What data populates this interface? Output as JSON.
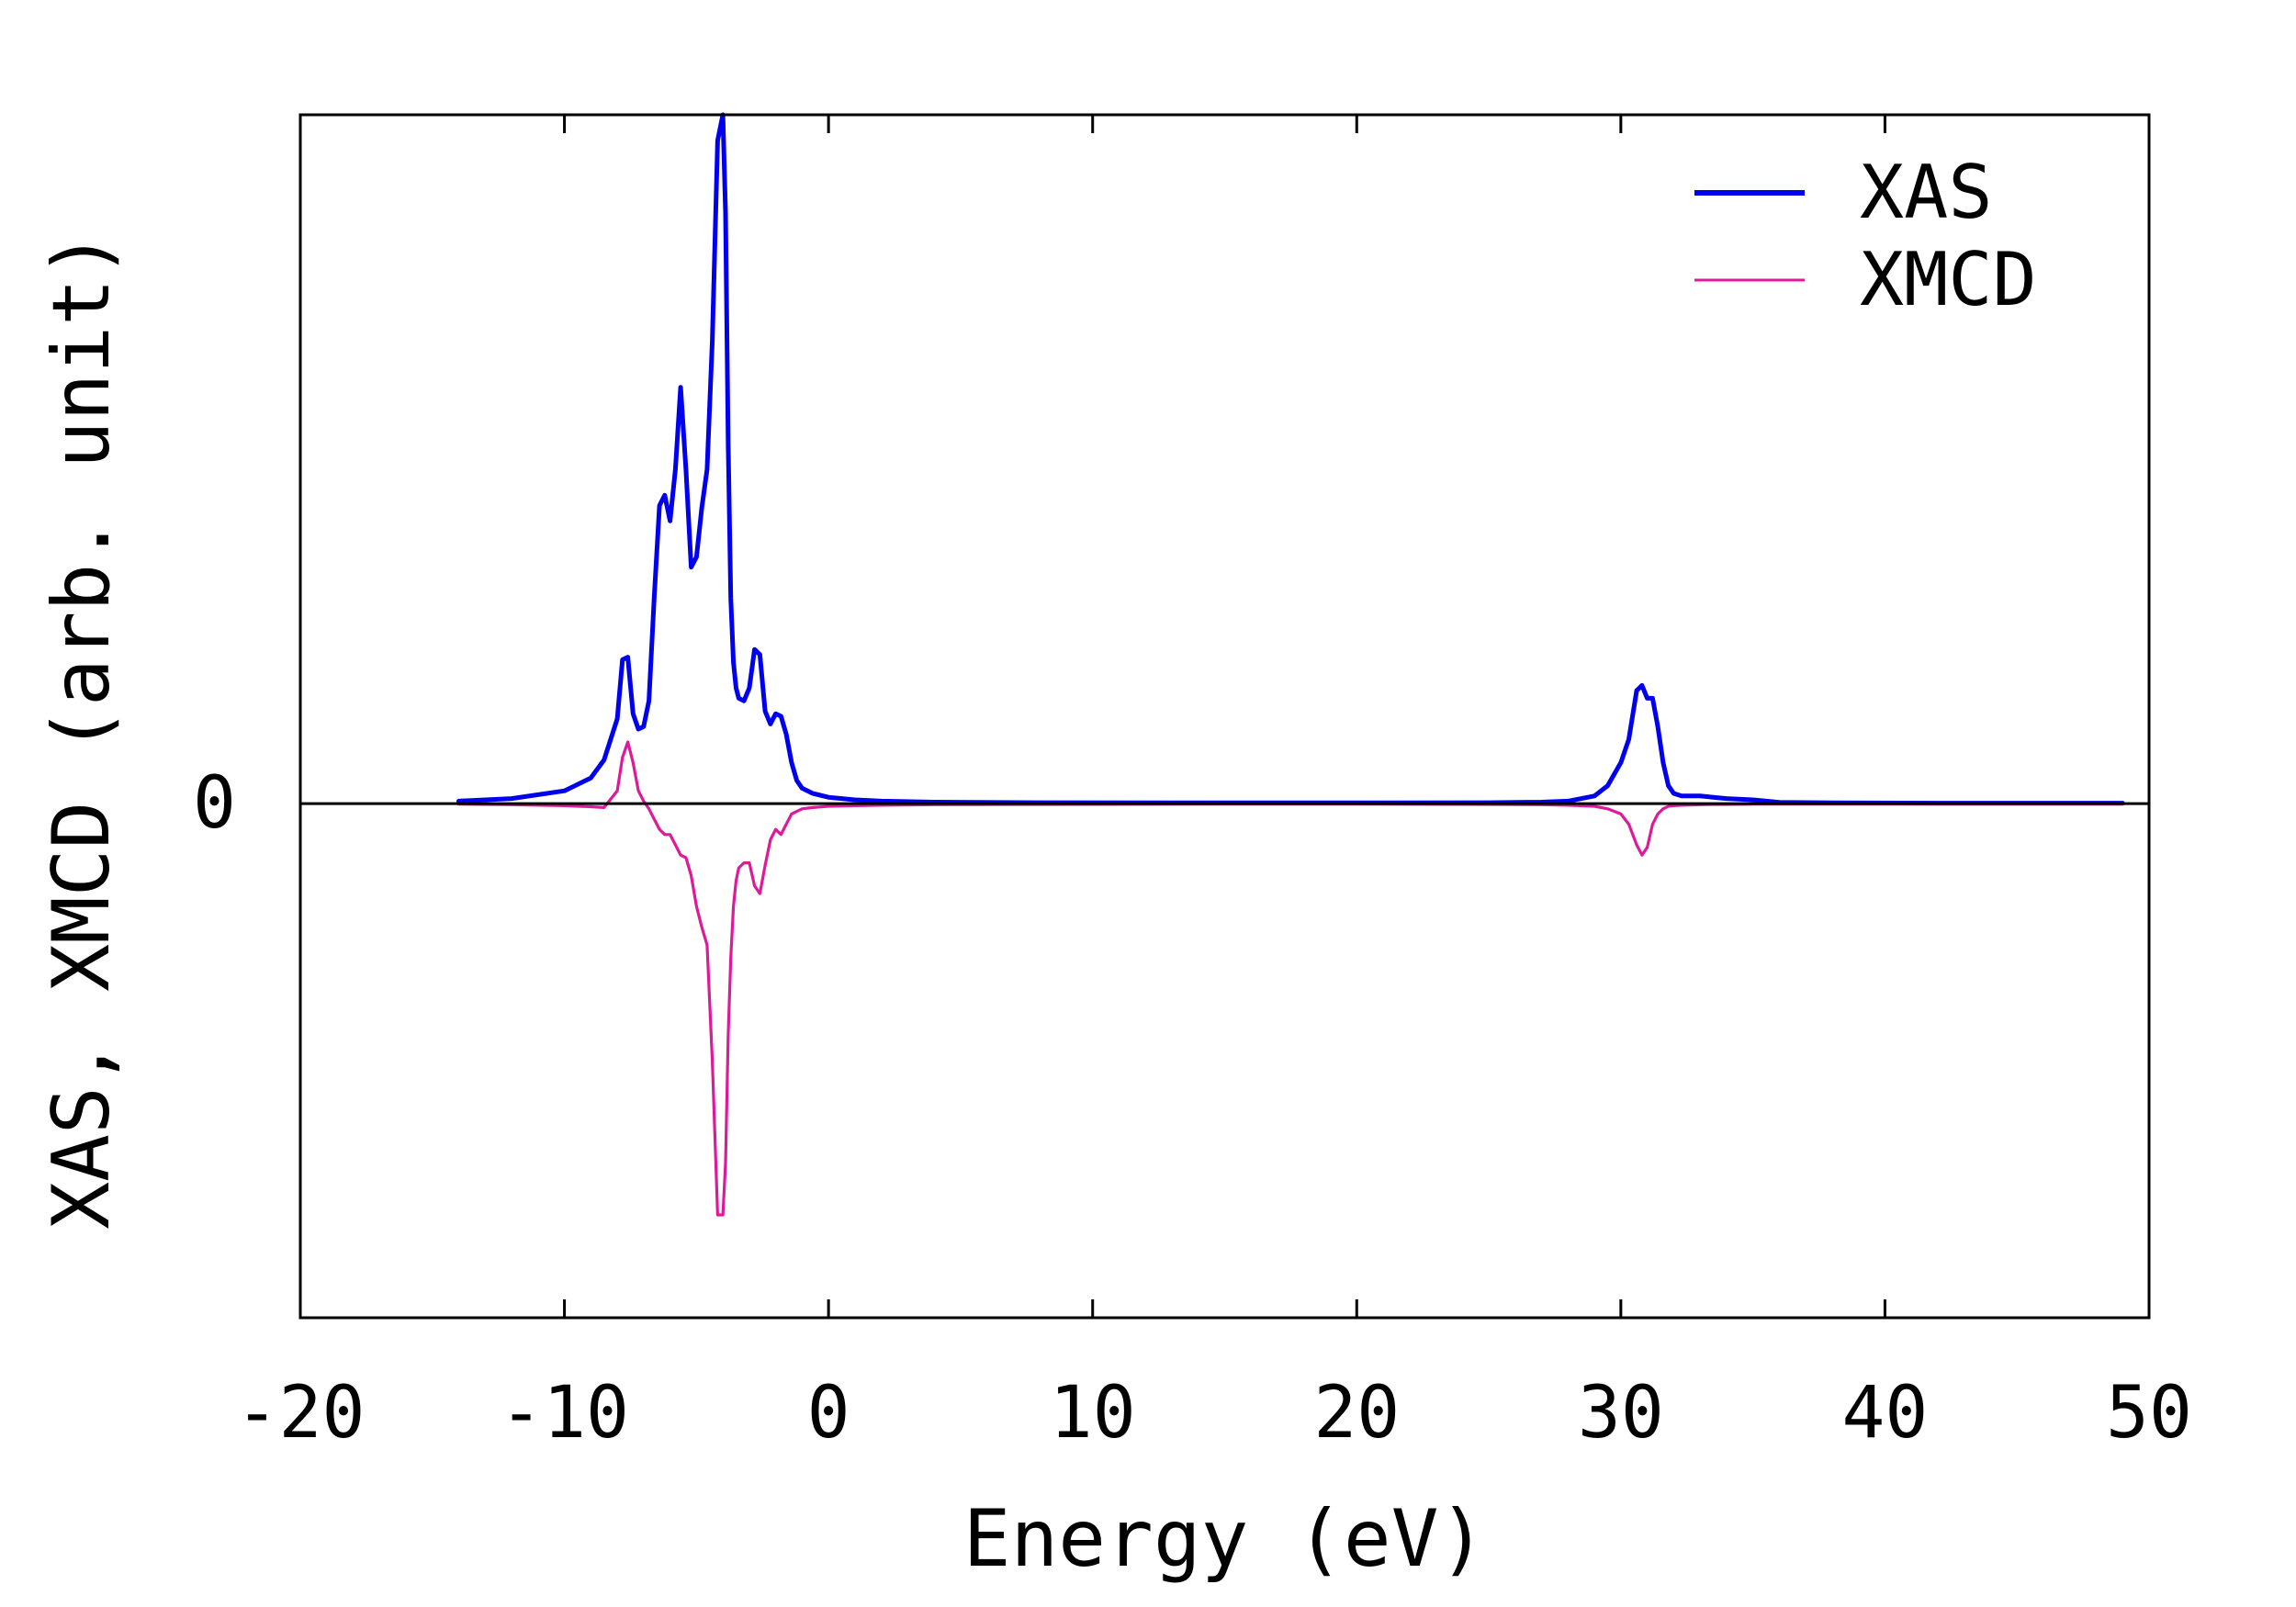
{
  "chart_data": {
    "type": "line",
    "title": "",
    "xlabel": "Energy (eV)",
    "ylabel": "XAS, XMCD (arb. unit)",
    "xlim": [
      -20,
      50
    ],
    "ylim": [
      -2.0,
      2.68
    ],
    "xticks": [
      -20,
      -10,
      0,
      10,
      20,
      30,
      40,
      50
    ],
    "xtick_labels": [
      "-20",
      "-10",
      "0",
      "10",
      "20",
      "30",
      "40",
      "50"
    ],
    "yticks": [
      0
    ],
    "ytick_labels": [
      "0"
    ],
    "zero_line": true,
    "grid": false,
    "legend": {
      "position": "top-right"
    },
    "series": [
      {
        "name": "XAS",
        "color": "#0000ee",
        "x": [
          -14.0,
          -12.0,
          -10.0,
          -9.0,
          -8.5,
          -8.0,
          -7.8,
          -7.6,
          -7.4,
          -7.2,
          -7.0,
          -6.8,
          -6.6,
          -6.4,
          -6.2,
          -6.0,
          -5.8,
          -5.6,
          -5.4,
          -5.2,
          -5.0,
          -4.8,
          -4.6,
          -4.4,
          -4.2,
          -4.0,
          -3.9,
          -3.8,
          -3.7,
          -3.6,
          -3.5,
          -3.4,
          -3.2,
          -3.0,
          -2.8,
          -2.6,
          -2.4,
          -2.2,
          -2.0,
          -1.8,
          -1.6,
          -1.4,
          -1.2,
          -1.0,
          -0.6,
          0.0,
          1.0,
          2.0,
          4.0,
          8.0,
          15.0,
          20.0,
          25.0,
          27.0,
          28.0,
          29.0,
          29.5,
          30.0,
          30.3,
          30.6,
          30.8,
          31.0,
          31.2,
          31.4,
          31.6,
          31.8,
          32.0,
          32.3,
          32.6,
          33.0,
          33.5,
          34.0,
          35.0,
          36.0,
          38.0,
          42.0,
          49.0
        ],
        "y": [
          0.01,
          0.02,
          0.05,
          0.1,
          0.17,
          0.33,
          0.56,
          0.57,
          0.35,
          0.29,
          0.3,
          0.4,
          0.8,
          1.16,
          1.2,
          1.1,
          1.3,
          1.62,
          1.3,
          0.92,
          0.96,
          1.15,
          1.3,
          1.8,
          2.58,
          2.68,
          2.3,
          1.4,
          0.8,
          0.55,
          0.45,
          0.41,
          0.4,
          0.45,
          0.6,
          0.58,
          0.36,
          0.31,
          0.35,
          0.34,
          0.27,
          0.16,
          0.09,
          0.06,
          0.04,
          0.025,
          0.015,
          0.01,
          0.006,
          0.004,
          0.003,
          0.003,
          0.004,
          0.006,
          0.01,
          0.03,
          0.07,
          0.16,
          0.25,
          0.44,
          0.46,
          0.41,
          0.41,
          0.3,
          0.16,
          0.07,
          0.04,
          0.03,
          0.03,
          0.03,
          0.025,
          0.02,
          0.015,
          0.005,
          0.003,
          0.002,
          0.002
        ]
      },
      {
        "name": "XMCD",
        "color": "#dd1a99",
        "x": [
          -14.0,
          -12.0,
          -10.0,
          -9.0,
          -8.5,
          -8.0,
          -7.8,
          -7.6,
          -7.4,
          -7.2,
          -7.0,
          -6.8,
          -6.6,
          -6.4,
          -6.2,
          -6.0,
          -5.8,
          -5.6,
          -5.4,
          -5.2,
          -5.0,
          -4.8,
          -4.6,
          -4.4,
          -4.2,
          -4.0,
          -3.9,
          -3.8,
          -3.7,
          -3.6,
          -3.5,
          -3.4,
          -3.2,
          -3.0,
          -2.8,
          -2.6,
          -2.4,
          -2.2,
          -2.0,
          -1.8,
          -1.6,
          -1.4,
          -1.2,
          -1.0,
          -0.6,
          0.0,
          1.0,
          2.0,
          4.0,
          8.0,
          15.0,
          20.0,
          25.0,
          27.0,
          28.0,
          29.0,
          29.5,
          30.0,
          30.3,
          30.6,
          30.8,
          31.0,
          31.2,
          31.4,
          31.6,
          31.8,
          32.0,
          32.3,
          32.6,
          33.0,
          33.5,
          34.0,
          35.0,
          36.0,
          38.0,
          42.0,
          49.0
        ],
        "y": [
          -0.002,
          -0.004,
          -0.008,
          -0.012,
          -0.015,
          0.05,
          0.18,
          0.24,
          0.16,
          0.05,
          0.01,
          -0.02,
          -0.06,
          -0.1,
          -0.12,
          -0.12,
          -0.16,
          -0.2,
          -0.21,
          -0.28,
          -0.4,
          -0.48,
          -0.55,
          -1.0,
          -1.6,
          -1.6,
          -1.4,
          -0.9,
          -0.6,
          -0.4,
          -0.3,
          -0.25,
          -0.23,
          -0.23,
          -0.32,
          -0.35,
          -0.24,
          -0.14,
          -0.1,
          -0.12,
          -0.08,
          -0.04,
          -0.03,
          -0.02,
          -0.015,
          -0.01,
          -0.008,
          -0.006,
          -0.004,
          -0.003,
          -0.002,
          -0.002,
          -0.003,
          -0.004,
          -0.006,
          -0.01,
          -0.02,
          -0.04,
          -0.08,
          -0.16,
          -0.2,
          -0.17,
          -0.08,
          -0.04,
          -0.02,
          -0.01,
          -0.008,
          -0.006,
          -0.005,
          -0.004,
          -0.003,
          -0.003,
          -0.002,
          -0.002,
          -0.002,
          -0.002,
          -0.002
        ]
      }
    ]
  }
}
